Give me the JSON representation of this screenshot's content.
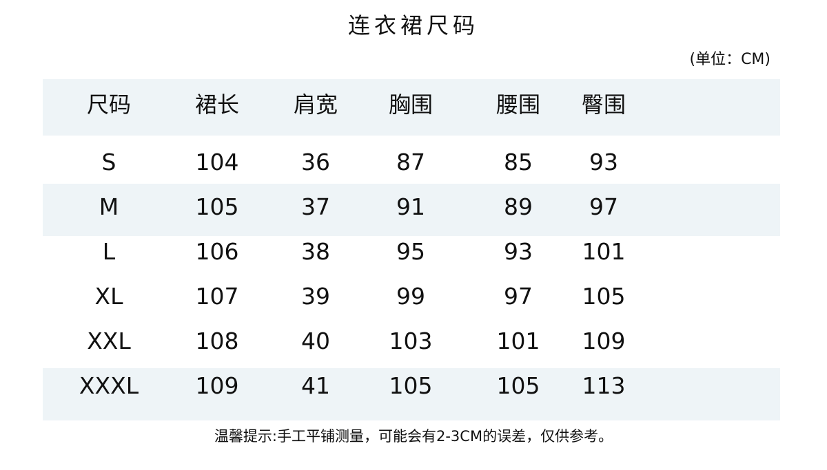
{
  "title": "连衣裙尺码",
  "unit": "(单位：CM)",
  "colors": {
    "band": "#eef4f7",
    "text": "#111111"
  },
  "table": {
    "headers": [
      "尺码",
      "裙长",
      "肩宽",
      "胸围",
      "腰围",
      "臀围"
    ],
    "rows": [
      [
        "S",
        "104",
        "36",
        "87",
        "85",
        "93"
      ],
      [
        "M",
        "105",
        "37",
        "91",
        "89",
        "97"
      ],
      [
        "L",
        "106",
        "38",
        "95",
        "93",
        "101"
      ],
      [
        "XL",
        "107",
        "39",
        "99",
        "97",
        "105"
      ],
      [
        "XXL",
        "108",
        "40",
        "103",
        "101",
        "109"
      ],
      [
        "XXXL",
        "109",
        "41",
        "105",
        "105",
        "113"
      ]
    ]
  },
  "note": "温馨提示:手工平铺测量，可能会有2-3CM的误差，仅供参考。"
}
